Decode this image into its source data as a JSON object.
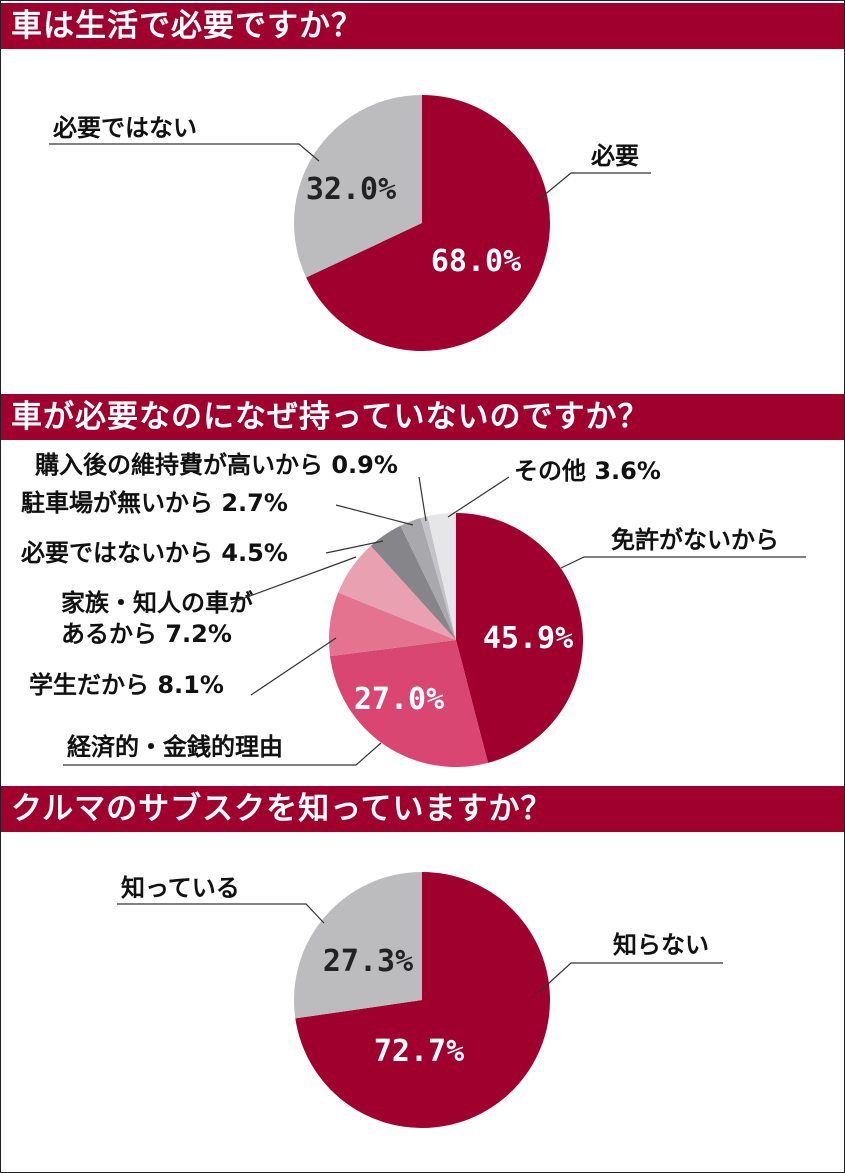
{
  "colors": {
    "header_bg": "#a0002e",
    "crimson": "#a0002e",
    "gray": "#bcbcbe"
  },
  "chart_data": [
    {
      "type": "pie",
      "title": "車は生活で必要ですか？",
      "slices": [
        {
          "label": "必要",
          "value": 68.0,
          "value_text": "68.0%",
          "color": "#a0002e"
        },
        {
          "label": "必要ではない",
          "value": 32.0,
          "value_text": "32.0%",
          "color": "#bcbcbe"
        }
      ]
    },
    {
      "type": "pie",
      "title": "車が必要なのになぜ持っていないのですか？",
      "slices": [
        {
          "label": "免許がないから",
          "value": 45.9,
          "value_text": "45.9%",
          "color": "#a0002e"
        },
        {
          "label": "経済的・金銭的理由",
          "value": 27.0,
          "value_text": "27.0%",
          "color": "#d94671"
        },
        {
          "label": "学生だから",
          "value": 8.1,
          "value_text": "8.1%",
          "color": "#e4738f"
        },
        {
          "label": "家族・知人の車が",
          "label2": "あるから",
          "value": 7.2,
          "value_text": "7.2%",
          "color": "#e9a0b1"
        },
        {
          "label": "必要ではないから",
          "value": 4.5,
          "value_text": "4.5%",
          "color": "#85858a"
        },
        {
          "label": "駐車場が無いから",
          "value": 2.7,
          "value_text": "2.7%",
          "color": "#a8a8ad"
        },
        {
          "label": "購入後の維持費が高いから",
          "value": 0.9,
          "value_text": "0.9%",
          "color": "#c4c4c8"
        },
        {
          "label": "その他",
          "value": 3.6,
          "value_text": "3.6%",
          "color": "#e6e6e8"
        }
      ]
    },
    {
      "type": "pie",
      "title": "クルマのサブスクを知っていますか？",
      "slices": [
        {
          "label": "知らない",
          "value": 72.7,
          "value_text": "72.7%",
          "color": "#a0002e"
        },
        {
          "label": "知っている",
          "value": 27.3,
          "value_text": "27.3%",
          "color": "#bcbcbe"
        }
      ]
    }
  ]
}
